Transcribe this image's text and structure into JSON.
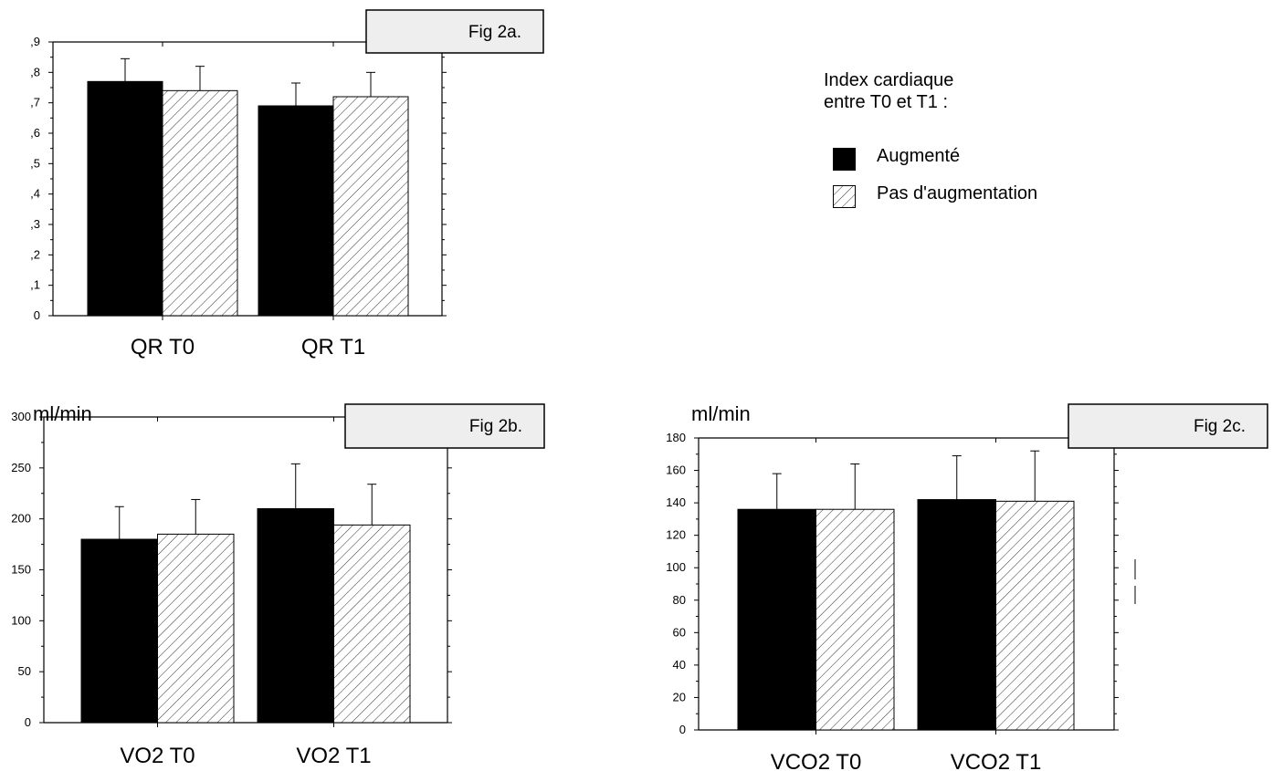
{
  "legend": {
    "title_lines": [
      "Index cardiaque",
      "entre T0 et T1 :"
    ],
    "items": [
      {
        "label": "Augmenté",
        "pattern": "solid",
        "color": "#000000"
      },
      {
        "label": "Pas d'augmentation",
        "pattern": "hatch",
        "color": "#ffffff"
      }
    ]
  },
  "chart_data": [
    {
      "type": "bar",
      "fig_label": "Fig 2a.",
      "unit_label": "",
      "categories": [
        "QR T0",
        "QR T1"
      ],
      "ylim": [
        0,
        0.9
      ],
      "yticks": [
        0,
        0.1,
        0.2,
        0.3,
        0.4,
        0.5,
        0.6,
        0.7,
        0.8,
        0.9
      ],
      "ytick_labels": [
        "0",
        ",1",
        ",2",
        ",3",
        ",4",
        ",5",
        ",6",
        ",7",
        ",8",
        ",9"
      ],
      "series": [
        {
          "name": "Augmenté",
          "values": [
            0.77,
            0.69
          ],
          "errors": [
            0.075,
            0.075
          ]
        },
        {
          "name": "Pas d'augmentation",
          "values": [
            0.74,
            0.72
          ],
          "errors": [
            0.08,
            0.08
          ]
        }
      ]
    },
    {
      "type": "bar",
      "fig_label": "Fig 2b.",
      "unit_label": "ml/min",
      "categories": [
        "VO2 T0",
        "VO2 T1"
      ],
      "ylim": [
        0,
        300
      ],
      "yticks": [
        0,
        50,
        100,
        150,
        200,
        250,
        300
      ],
      "ytick_labels": [
        "0",
        "50",
        "100",
        "150",
        "200",
        "250",
        "300"
      ],
      "series": [
        {
          "name": "Augmenté",
          "values": [
            180,
            210
          ],
          "errors": [
            32,
            44
          ]
        },
        {
          "name": "Pas d'augmentation",
          "values": [
            185,
            194
          ],
          "errors": [
            34,
            40
          ]
        }
      ]
    },
    {
      "type": "bar",
      "fig_label": "Fig 2c.",
      "unit_label": "ml/min",
      "categories": [
        "VCO2 T0",
        "VCO2 T1"
      ],
      "ylim": [
        0,
        180
      ],
      "yticks": [
        0,
        20,
        40,
        60,
        80,
        100,
        120,
        140,
        160,
        180
      ],
      "ytick_labels": [
        "0",
        "20",
        "40",
        "60",
        "80",
        "100",
        "120",
        "140",
        "160",
        "180"
      ],
      "series": [
        {
          "name": "Augmenté",
          "values": [
            136,
            142
          ],
          "errors": [
            22,
            27
          ]
        },
        {
          "name": "Pas d'augmentation",
          "values": [
            136,
            141
          ],
          "errors": [
            28,
            31
          ]
        }
      ]
    }
  ]
}
